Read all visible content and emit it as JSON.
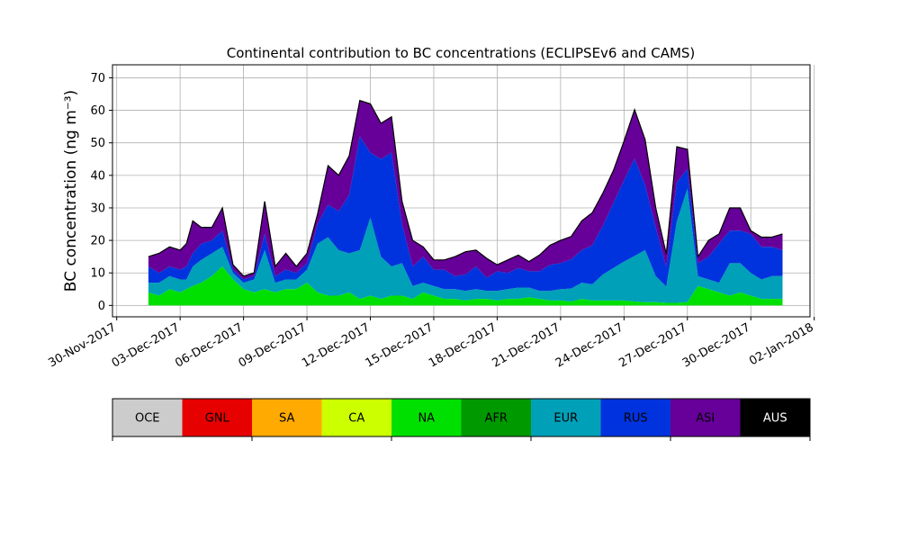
{
  "chart_data": {
    "type": "area",
    "title": "Continental contribution to BC concentrations (ECLIPSEv6 and CAMS)",
    "ylabel": "BC concentration (ng m⁻³)",
    "xlabel": "",
    "ylim": [
      -3.5,
      74
    ],
    "yticks": [
      0,
      10,
      20,
      30,
      40,
      50,
      60,
      70
    ],
    "xlim_days": [
      -1.2,
      31.8
    ],
    "xticks": [
      {
        "day": -1,
        "label": "30-Nov-2017"
      },
      {
        "day": 2,
        "label": "03-Dec-2017"
      },
      {
        "day": 5,
        "label": "06-Dec-2017"
      },
      {
        "day": 8,
        "label": "09-Dec-2017"
      },
      {
        "day": 11,
        "label": "12-Dec-2017"
      },
      {
        "day": 14,
        "label": "15-Dec-2017"
      },
      {
        "day": 17,
        "label": "18-Dec-2017"
      },
      {
        "day": 20,
        "label": "21-Dec-2017"
      },
      {
        "day": 23,
        "label": "24-Dec-2017"
      },
      {
        "day": 26,
        "label": "27-Dec-2017"
      },
      {
        "day": 29,
        "label": "30-Dec-2017"
      },
      {
        "day": 32,
        "label": "02-Jan-2018"
      }
    ],
    "grid": true,
    "x_days_from_01_Dec_2017": [
      0.5,
      1.0,
      1.5,
      2.0,
      2.3,
      2.6,
      3.0,
      3.5,
      4.0,
      4.5,
      5.0,
      5.5,
      6.0,
      6.5,
      7.0,
      7.5,
      8.0,
      8.5,
      9.0,
      9.5,
      10.0,
      10.5,
      11.0,
      11.5,
      12.0,
      12.5,
      13.0,
      13.5,
      14.0,
      14.5,
      15.0,
      15.5,
      16.0,
      16.5,
      17.0,
      17.5,
      18.0,
      18.5,
      19.0,
      19.5,
      20.0,
      20.5,
      21.0,
      21.5,
      22.0,
      22.5,
      23.0,
      23.5,
      24.0,
      24.5,
      25.0,
      25.5,
      26.0,
      26.5,
      27.0,
      27.5,
      28.0,
      28.5,
      29.0,
      29.5,
      30.0,
      30.5
    ],
    "series": [
      {
        "name": "OCE",
        "color": "#cccccc",
        "values": [
          0,
          0,
          0,
          0,
          0,
          0,
          0,
          0,
          0,
          0,
          0,
          0,
          0,
          0,
          0,
          0,
          0,
          0,
          0,
          0,
          0,
          0,
          0,
          0,
          0,
          0,
          0,
          0,
          0,
          0,
          0,
          0,
          0,
          0,
          0,
          0,
          0,
          0,
          0,
          0,
          0,
          0,
          0,
          0,
          0,
          0,
          0,
          0,
          0,
          0,
          0,
          0,
          0,
          0,
          0,
          0,
          0,
          0,
          0,
          0,
          0,
          0
        ]
      },
      {
        "name": "GNL",
        "color": "#e60000",
        "values": [
          0,
          0,
          0,
          0,
          0,
          0,
          0,
          0,
          0,
          0,
          0,
          0,
          0,
          0,
          0,
          0,
          0,
          0,
          0,
          0,
          0,
          0,
          0,
          0,
          0,
          0,
          0,
          0,
          0,
          0,
          0,
          0,
          0,
          0,
          0,
          0,
          0,
          0,
          0,
          0,
          0,
          0,
          0,
          0,
          0,
          0,
          0,
          0,
          0,
          0,
          0,
          0,
          0,
          0,
          0,
          0,
          0,
          0,
          0,
          0,
          0,
          0
        ]
      },
      {
        "name": "SA",
        "color": "#ffaa00",
        "values": [
          0,
          0,
          0,
          0,
          0,
          0,
          0,
          0,
          0,
          0,
          0,
          0,
          0,
          0,
          0,
          0,
          0,
          0,
          0,
          0,
          0,
          0,
          0,
          0,
          0,
          0,
          0,
          0,
          0,
          0,
          0,
          0,
          0,
          0,
          0,
          0,
          0,
          0,
          0,
          0,
          0,
          0,
          0,
          0,
          0,
          0,
          0,
          0,
          0,
          0,
          0,
          0,
          0,
          0,
          0,
          0,
          0,
          0,
          0,
          0,
          0,
          0
        ]
      },
      {
        "name": "CA",
        "color": "#ccff00",
        "values": [
          0,
          0,
          0,
          0,
          0,
          0,
          0,
          0,
          0,
          0,
          0,
          0,
          0,
          0,
          0,
          0,
          0,
          0,
          0,
          0,
          0,
          0,
          0,
          0,
          0,
          0,
          0,
          0,
          0,
          0,
          0,
          0,
          0,
          0,
          0,
          0,
          0,
          0,
          0,
          0,
          0,
          0,
          0,
          0,
          0,
          0,
          0,
          0,
          0,
          0,
          0,
          0,
          0,
          0,
          0,
          0,
          0,
          0,
          0,
          0,
          0,
          0
        ]
      },
      {
        "name": "NA",
        "color": "#00e000",
        "values": [
          4,
          3,
          5,
          4,
          5,
          6,
          7,
          9,
          12,
          8,
          5,
          4,
          5,
          4,
          5,
          5,
          7,
          4,
          3,
          3,
          4,
          2,
          3,
          2,
          3,
          3,
          2,
          4,
          3,
          2,
          2,
          1.5,
          2,
          2,
          1.5,
          2,
          2,
          2.5,
          2,
          1.5,
          1.5,
          1.2,
          2,
          1.5,
          1.5,
          1.5,
          1.5,
          1.2,
          1,
          1,
          0.8,
          0.8,
          1,
          6,
          5,
          4,
          3,
          4,
          3,
          2,
          2,
          2
        ]
      },
      {
        "name": "AFR",
        "color": "#009900",
        "values": [
          0,
          0,
          0,
          0,
          0,
          0,
          0,
          0,
          0,
          0,
          0,
          0,
          0,
          0,
          0,
          0,
          0,
          0,
          0,
          0,
          0,
          0,
          0,
          0,
          0,
          0,
          0,
          0,
          0,
          0,
          0,
          0,
          0,
          0,
          0,
          0,
          0,
          0,
          0,
          0,
          0,
          0,
          0,
          0,
          0,
          0,
          0,
          0,
          0,
          0,
          0,
          0,
          0,
          0,
          0,
          0,
          0,
          0,
          0,
          0,
          0,
          0
        ]
      },
      {
        "name": "EUR",
        "color": "#00a0b8",
        "values": [
          3,
          4,
          4,
          4,
          3,
          6,
          7,
          7,
          6,
          2,
          2,
          4,
          12,
          3,
          3,
          3,
          4,
          15,
          18,
          14,
          12,
          15,
          24,
          13,
          9,
          10,
          4,
          3,
          3,
          3,
          3,
          3,
          3,
          2.5,
          3,
          3,
          3.5,
          3,
          2.5,
          3,
          3.5,
          4,
          5,
          5,
          8,
          10,
          12,
          14,
          16,
          8,
          5,
          25,
          35,
          3,
          3,
          3,
          10,
          9,
          7,
          6,
          7,
          7
        ]
      },
      {
        "name": "RUS",
        "color": "#0033dd",
        "values": [
          5,
          3,
          3,
          3,
          4,
          4,
          5,
          4,
          5,
          1,
          1,
          1,
          5,
          2,
          3,
          2,
          2,
          6,
          10,
          12,
          18,
          35,
          20,
          30,
          35,
          12,
          6,
          8,
          5,
          6,
          4,
          5,
          7,
          4,
          6,
          5,
          6,
          5,
          6,
          8,
          8,
          9,
          10,
          12,
          15,
          20,
          25,
          30,
          20,
          15,
          6,
          12,
          6,
          4,
          7,
          12,
          10,
          10,
          12,
          10,
          9,
          8
        ]
      },
      {
        "name": "ASI",
        "color": "#660099",
        "values": [
          3,
          6,
          6,
          6,
          7,
          10,
          5,
          4,
          7,
          1.5,
          1,
          1,
          10,
          3,
          5,
          2,
          3,
          3,
          12,
          11,
          12,
          11,
          15,
          11,
          11,
          7,
          8,
          3,
          3,
          3,
          6,
          7,
          5,
          6,
          2,
          4,
          4,
          3,
          5,
          6,
          7,
          7,
          9,
          10,
          10,
          10,
          12,
          15,
          14,
          6,
          4,
          11,
          6,
          2,
          5,
          3,
          7,
          7,
          1,
          3,
          3,
          5
        ]
      },
      {
        "name": "AUS",
        "color": "#000000",
        "values": [
          0,
          0,
          0,
          0,
          0,
          0,
          0,
          0,
          0,
          0,
          0,
          0,
          0,
          0,
          0,
          0,
          0,
          0,
          0,
          0,
          0,
          0,
          0,
          0,
          0,
          0,
          0,
          0,
          0,
          0,
          0,
          0,
          0,
          0,
          0,
          0,
          0,
          0,
          0,
          0,
          0,
          0,
          0,
          0,
          0,
          0,
          0,
          0,
          0,
          0,
          0,
          0,
          0,
          0,
          0,
          0,
          0,
          0,
          0,
          0,
          0,
          0
        ]
      }
    ]
  },
  "legend": {
    "items": [
      {
        "name": "OCE",
        "color": "#cccccc",
        "text_color": "#000000"
      },
      {
        "name": "GNL",
        "color": "#e60000",
        "text_color": "#000000"
      },
      {
        "name": "SA",
        "color": "#ffaa00",
        "text_color": "#000000"
      },
      {
        "name": "CA",
        "color": "#ccff00",
        "text_color": "#000000"
      },
      {
        "name": "NA",
        "color": "#00e000",
        "text_color": "#000000"
      },
      {
        "name": "AFR",
        "color": "#009900",
        "text_color": "#000000"
      },
      {
        "name": "EUR",
        "color": "#00a0b8",
        "text_color": "#000000"
      },
      {
        "name": "RUS",
        "color": "#0033dd",
        "text_color": "#000000"
      },
      {
        "name": "ASI",
        "color": "#660099",
        "text_color": "#000000"
      },
      {
        "name": "AUS",
        "color": "#000000",
        "text_color": "#ffffff"
      }
    ]
  }
}
